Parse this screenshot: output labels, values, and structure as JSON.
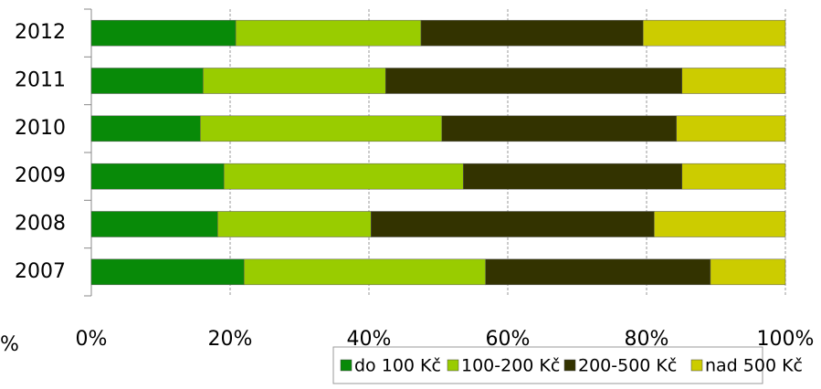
{
  "chart_data": {
    "type": "stacked-barh",
    "annotation": "%",
    "categories": [
      "2012",
      "2011",
      "2010",
      "2009",
      "2008",
      "2007"
    ],
    "series": [
      {
        "name": "do 100 Kč",
        "color": "#088a08",
        "values": [
          20.8,
          16.1,
          15.7,
          19.1,
          18.2,
          22.0
        ]
      },
      {
        "name": "100-200 Kč",
        "color": "#99cc00",
        "values": [
          26.7,
          26.3,
          34.8,
          34.5,
          22.1,
          34.8
        ]
      },
      {
        "name": "200-500 Kč",
        "color": "#333300",
        "values": [
          32.0,
          42.7,
          33.8,
          31.5,
          40.8,
          32.4
        ]
      },
      {
        "name": "nad 500 Kč",
        "color": "#cccc00",
        "values": [
          20.5,
          14.9,
          15.7,
          14.9,
          18.9,
          10.8
        ]
      }
    ],
    "xlim": [
      0,
      100
    ],
    "xticks": [
      {
        "value": 0,
        "label": "0%"
      },
      {
        "value": 20,
        "label": "20%"
      },
      {
        "value": 40,
        "label": "40%"
      },
      {
        "value": 60,
        "label": "60%"
      },
      {
        "value": 80,
        "label": "80%"
      },
      {
        "value": 100,
        "label": "100%"
      }
    ],
    "grid": true,
    "legend": "bottom"
  }
}
